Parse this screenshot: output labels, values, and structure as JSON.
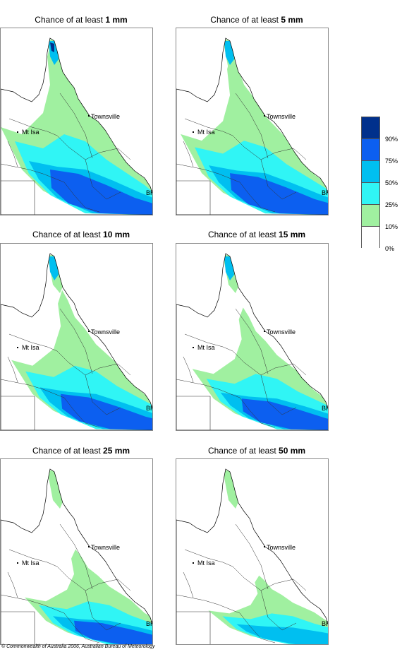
{
  "panels": [
    {
      "title_prefix": "Chance of at least ",
      "threshold": "1 mm",
      "level": 0
    },
    {
      "title_prefix": "Chance of at least ",
      "threshold": "5 mm",
      "level": 1
    },
    {
      "title_prefix": "Chance of at least ",
      "threshold": "10 mm",
      "level": 2
    },
    {
      "title_prefix": "Chance of at least ",
      "threshold": "15 mm",
      "level": 3
    },
    {
      "title_prefix": "Chance of at least ",
      "threshold": "25 mm",
      "level": 4
    },
    {
      "title_prefix": "Chance of at least ",
      "threshold": "50 mm",
      "level": 5
    }
  ],
  "places": {
    "townsville": "Townsville",
    "mt_isa": "Mt Isa",
    "brisbane": "BRIS"
  },
  "legend": {
    "labels": [
      "90%",
      "75%",
      "50%",
      "25%",
      "10%",
      "0%"
    ],
    "colors": [
      "#00308c",
      "#0c5ff0",
      "#00bff0",
      "#30f5f5",
      "#a0f0a0",
      "#ffffff"
    ]
  },
  "copyright": "© Commonwealth of Australia 2006, Australian Bureau of Meteorology"
}
